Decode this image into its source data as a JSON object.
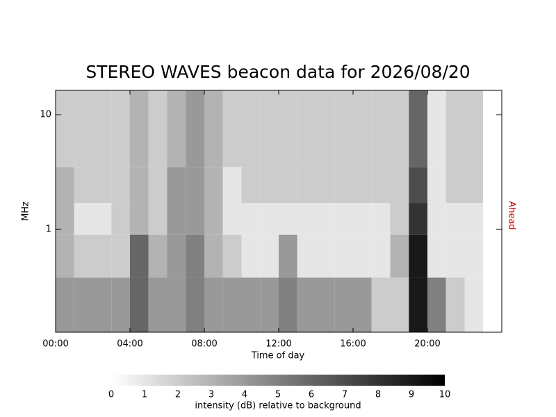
{
  "chart_data": {
    "type": "heatmap",
    "title": "STEREO WAVES beacon data for 2026/08/20",
    "x_label": "Time of day",
    "y_label": "MHz",
    "side_label": "Ahead",
    "side_label_color": "#d00000",
    "xlim": [
      0,
      24
    ],
    "xticks": [
      {
        "value": 0,
        "label": "00:00"
      },
      {
        "value": 4,
        "label": "04:00"
      },
      {
        "value": 8,
        "label": "08:00"
      },
      {
        "value": 12,
        "label": "12:00"
      },
      {
        "value": 16,
        "label": "16:00"
      },
      {
        "value": 20,
        "label": "20:00"
      }
    ],
    "ylim": [
      0.127,
      16.3
    ],
    "y_log": true,
    "yticks": [
      1,
      10
    ],
    "x_edges": [
      0,
      1,
      2,
      3,
      4,
      5,
      6,
      7,
      8,
      9,
      10,
      11,
      12,
      13,
      14,
      15,
      16,
      17,
      18,
      19,
      20,
      21,
      22,
      23,
      24
    ],
    "y_edges": [
      0.127,
      0.38,
      0.9,
      1.7,
      3.5,
      16.3
    ],
    "z": [
      [
        4,
        4,
        4,
        4,
        6,
        4,
        4,
        5,
        4,
        4,
        4,
        4,
        5,
        4,
        4,
        4,
        4,
        2,
        2,
        9,
        5,
        2,
        1,
        0
      ],
      [
        3,
        2,
        2,
        2,
        6,
        3,
        4,
        5,
        3,
        2,
        1,
        1,
        4,
        1,
        1,
        1,
        1,
        1,
        3,
        9,
        1,
        1,
        1,
        0
      ],
      [
        3,
        1,
        1,
        2,
        3,
        2,
        4,
        4,
        3,
        1,
        1,
        1,
        1,
        1,
        1,
        1,
        1,
        1,
        2,
        8,
        1,
        1,
        1,
        0
      ],
      [
        3,
        2,
        2,
        2,
        3,
        2,
        4,
        4,
        3,
        1,
        2,
        2,
        2,
        2,
        2,
        2,
        2,
        2,
        2,
        7,
        1,
        2,
        2,
        0
      ],
      [
        2,
        2,
        2,
        2,
        3,
        2,
        3,
        4,
        3,
        2,
        2,
        2,
        2,
        2,
        2,
        2,
        2,
        2,
        2,
        6,
        1,
        2,
        2,
        0
      ]
    ],
    "zlim": [
      0,
      10
    ],
    "colorbar_ticks": [
      0,
      1,
      2,
      3,
      4,
      5,
      6,
      7,
      8,
      9,
      10
    ],
    "colorbar_label": "intensity (dB) relative to background"
  }
}
